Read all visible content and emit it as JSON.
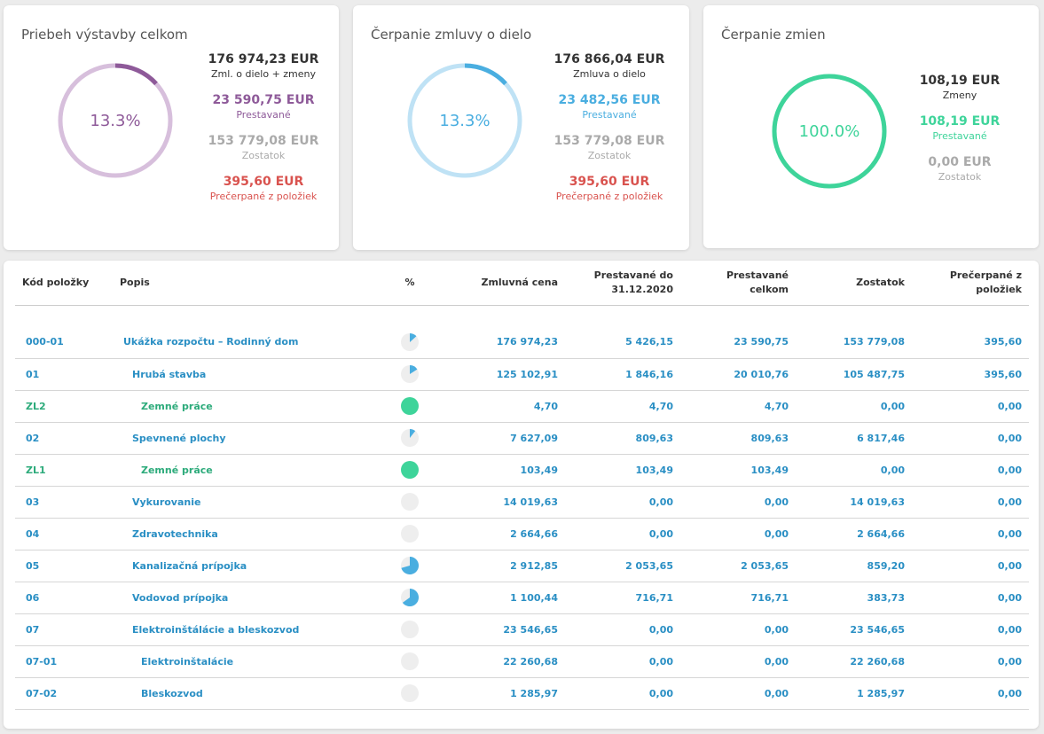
{
  "cards": [
    {
      "title": "Priebeh výstavby celkom",
      "percent_text": "13.3%",
      "fraction": 0.133,
      "ring_color": "#d7bfdc",
      "arc_color": "#8e5a99",
      "text_color": "#8e5a99",
      "stats": [
        {
          "value": "176 974,23 EUR",
          "label": "Zml. o dielo + zmeny",
          "style": "dark"
        },
        {
          "value": "23 590,75 EUR",
          "label": "Prestavané",
          "style": "purple"
        },
        {
          "value": "153 779,08 EUR",
          "label": "Zostatok",
          "style": "gray"
        },
        {
          "value": "395,60 EUR",
          "label": "Prečerpané z položiek",
          "style": "red"
        }
      ]
    },
    {
      "title": "Čerpanie zmluvy o dielo",
      "percent_text": "13.3%",
      "fraction": 0.133,
      "ring_color": "#bfe2f5",
      "arc_color": "#4aaee0",
      "text_color": "#4aaee0",
      "stats": [
        {
          "value": "176 866,04 EUR",
          "label": "Zmluva o dielo",
          "style": "dark"
        },
        {
          "value": "23 482,56 EUR",
          "label": "Prestavané",
          "style": "blue"
        },
        {
          "value": "153 779,08 EUR",
          "label": "Zostatok",
          "style": "gray"
        },
        {
          "value": "395,60 EUR",
          "label": "Prečerpané z položiek",
          "style": "red"
        }
      ]
    },
    {
      "title": "Čerpanie zmien",
      "percent_text": "100.0%",
      "fraction": 1.0,
      "ring_color": "#bdf0dc",
      "arc_color": "#3ed49a",
      "text_color": "#3ed49a",
      "stats": [
        {
          "value": "108,19 EUR",
          "label": "Zmeny",
          "style": "dark"
        },
        {
          "value": "108,19 EUR",
          "label": "Prestavané",
          "style": "green"
        },
        {
          "value": "0,00 EUR",
          "label": "Zostatok",
          "style": "gray"
        }
      ]
    }
  ],
  "table": {
    "headers": {
      "code": "Kód položky",
      "desc": "Popis",
      "pct": "%",
      "contract": "Zmluvná cena",
      "built_to": "Prestavané do 31.12.2020",
      "built_total": "Prestavané celkom",
      "remaining": "Zostatok",
      "overdrawn": "Prečerpané z položiek"
    },
    "rows": [
      {
        "code": "000-01",
        "desc": "Ukážka rozpočtu – Rodinný dom",
        "level": 0,
        "type": "blue",
        "pct": 0.133,
        "contract": "176 974,23",
        "built_to": "5 426,15",
        "built_total": "23 590,75",
        "remaining": "153 779,08",
        "overdrawn": "395,60"
      },
      {
        "code": "01",
        "desc": "Hrubá stavba",
        "level": 1,
        "type": "blue",
        "pct": 0.16,
        "contract": "125 102,91",
        "built_to": "1 846,16",
        "built_total": "20 010,76",
        "remaining": "105 487,75",
        "overdrawn": "395,60"
      },
      {
        "code": "ZL2",
        "desc": "Zemné práce",
        "level": 2,
        "type": "green",
        "pct": 1.0,
        "contract": "4,70",
        "built_to": "4,70",
        "built_total": "4,70",
        "remaining": "0,00",
        "overdrawn": "0,00"
      },
      {
        "code": "02",
        "desc": "Spevnené plochy",
        "level": 1,
        "type": "blue",
        "pct": 0.106,
        "contract": "7 627,09",
        "built_to": "809,63",
        "built_total": "809,63",
        "remaining": "6 817,46",
        "overdrawn": "0,00"
      },
      {
        "code": "ZL1",
        "desc": "Zemné práce",
        "level": 2,
        "type": "green",
        "pct": 1.0,
        "contract": "103,49",
        "built_to": "103,49",
        "built_total": "103,49",
        "remaining": "0,00",
        "overdrawn": "0,00"
      },
      {
        "code": "03",
        "desc": "Vykurovanie",
        "level": 1,
        "type": "blue",
        "pct": 0,
        "contract": "14 019,63",
        "built_to": "0,00",
        "built_total": "0,00",
        "remaining": "14 019,63",
        "overdrawn": "0,00"
      },
      {
        "code": "04",
        "desc": "Zdravotechnika",
        "level": 1,
        "type": "blue",
        "pct": 0,
        "contract": "2 664,66",
        "built_to": "0,00",
        "built_total": "0,00",
        "remaining": "2 664,66",
        "overdrawn": "0,00"
      },
      {
        "code": "05",
        "desc": "Kanalizačná prípojka",
        "level": 1,
        "type": "blue",
        "pct": 0.705,
        "contract": "2 912,85",
        "built_to": "2 053,65",
        "built_total": "2 053,65",
        "remaining": "859,20",
        "overdrawn": "0,00"
      },
      {
        "code": "06",
        "desc": "Vodovod prípojka",
        "level": 1,
        "type": "blue",
        "pct": 0.651,
        "contract": "1 100,44",
        "built_to": "716,71",
        "built_total": "716,71",
        "remaining": "383,73",
        "overdrawn": "0,00"
      },
      {
        "code": "07",
        "desc": "Elektroinštálácie a bleskozvod",
        "level": 1,
        "type": "blue",
        "pct": 0,
        "contract": "23 546,65",
        "built_to": "0,00",
        "built_total": "0,00",
        "remaining": "23 546,65",
        "overdrawn": "0,00"
      },
      {
        "code": "07-01",
        "desc": "Elektroinštalácie",
        "level": 2,
        "type": "blue",
        "pct": 0,
        "contract": "22 260,68",
        "built_to": "0,00",
        "built_total": "0,00",
        "remaining": "22 260,68",
        "overdrawn": "0,00"
      },
      {
        "code": "07-02",
        "desc": "Bleskozvod",
        "level": 2,
        "type": "blue",
        "pct": 0,
        "contract": "1 285,97",
        "built_to": "0,00",
        "built_total": "0,00",
        "remaining": "1 285,97",
        "overdrawn": "0,00"
      }
    ]
  }
}
